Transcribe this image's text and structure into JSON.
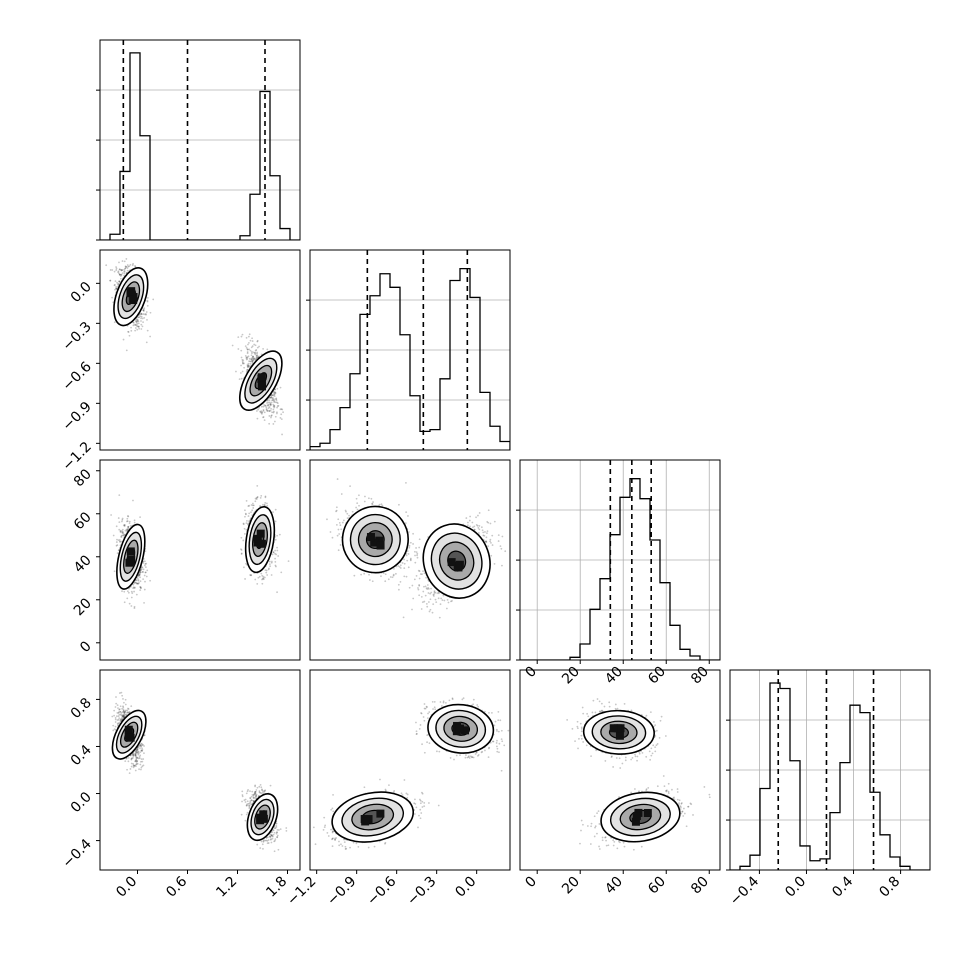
{
  "figure": {
    "type": "corner-plot",
    "variables": 4
  },
  "chart_data": [
    {
      "type": "histogram",
      "row": 0,
      "col": 0,
      "xlim": [
        -0.45,
        1.95
      ],
      "bins": [
        -0.45,
        -0.33,
        -0.21,
        -0.09,
        0.03,
        0.15,
        0.27,
        0.39,
        0.51,
        0.63,
        0.75,
        0.87,
        0.99,
        1.11,
        1.23,
        1.35,
        1.47,
        1.59,
        1.71,
        1.83,
        1.95
      ],
      "counts": [
        0,
        4,
        48,
        131,
        73,
        0,
        0,
        0,
        0,
        0,
        0,
        0,
        0,
        0,
        3,
        32,
        104,
        45,
        8,
        0
      ],
      "ymax": 140,
      "quantiles": [
        -0.17,
        0.6,
        1.53
      ],
      "ticks": [],
      "grid": true
    },
    {
      "type": "histogram",
      "row": 1,
      "col": 1,
      "xlim": [
        -1.25,
        0.25
      ],
      "bins": [
        -1.25,
        -1.175,
        -1.1,
        -1.025,
        -0.95,
        -0.875,
        -0.8,
        -0.725,
        -0.65,
        -0.575,
        -0.5,
        -0.425,
        -0.35,
        -0.275,
        -0.2,
        -0.125,
        -0.05,
        0.025,
        0.1,
        0.175,
        0.25
      ],
      "counts": [
        2,
        4,
        12,
        25,
        45,
        80,
        91,
        104,
        96,
        68,
        32,
        11,
        12,
        42,
        100,
        107,
        90,
        34,
        14,
        5
      ],
      "ymax": 118,
      "quantiles": [
        -0.82,
        -0.4,
        -0.07
      ],
      "ticks": [],
      "grid": true
    },
    {
      "type": "histogram",
      "row": 2,
      "col": 2,
      "xlim": [
        -8,
        85
      ],
      "bins": [
        -8,
        -3.35,
        1.3,
        5.95,
        10.6,
        15.25,
        19.9,
        24.55,
        29.2,
        33.85,
        38.5,
        43.15,
        47.8,
        52.45,
        57.1,
        61.75,
        66.4,
        71.05,
        75.7,
        80.35,
        85
      ],
      "counts": [
        0,
        0,
        0,
        0,
        0,
        2,
        12,
        38,
        61,
        94,
        122,
        136,
        121,
        90,
        58,
        26,
        8,
        3,
        0,
        0
      ],
      "ymax": 150,
      "quantiles": [
        34,
        44,
        53
      ],
      "ticks": [
        0,
        20,
        40,
        60,
        80
      ],
      "tick_labels": [
        "0",
        "20",
        "40",
        "60",
        "80"
      ],
      "grid": true
    },
    {
      "type": "histogram",
      "row": 3,
      "col": 3,
      "xlim": [
        -0.65,
        1.05
      ],
      "bins": [
        -0.65,
        -0.565,
        -0.48,
        -0.395,
        -0.31,
        -0.225,
        -0.14,
        -0.055,
        0.03,
        0.115,
        0.2,
        0.285,
        0.37,
        0.455,
        0.54,
        0.625,
        0.71,
        0.795,
        0.88,
        0.965,
        1.05
      ],
      "counts": [
        0,
        2,
        8,
        44,
        101,
        98,
        59,
        13,
        5,
        6,
        31,
        58,
        89,
        85,
        42,
        19,
        7,
        2,
        0,
        0
      ],
      "ymax": 108,
      "quantiles": [
        -0.24,
        0.17,
        0.57
      ],
      "ticks": [
        -0.4,
        0.0,
        0.4,
        0.8
      ],
      "tick_labels": [
        "−0.4",
        "0.0",
        "0.4",
        "0.8"
      ],
      "grid": true
    },
    {
      "type": "scatter-density",
      "row": 1,
      "col": 0,
      "xlim": [
        -0.45,
        1.95
      ],
      "ylim": [
        -1.25,
        0.25
      ],
      "clusters": [
        {
          "cx": -0.08,
          "cy": -0.1,
          "sx": 0.085,
          "sy": 0.11,
          "corr": -0.3
        },
        {
          "cx": 1.48,
          "cy": -0.73,
          "sx": 0.09,
          "sy": 0.12,
          "corr": -0.55
        }
      ],
      "yticks": [
        -1.2,
        -0.9,
        -0.6,
        -0.3,
        0.0
      ],
      "ytick_labels": [
        "−1.2",
        "−0.9",
        "−0.6",
        "−0.3",
        "0.0"
      ],
      "grid": false
    },
    {
      "type": "scatter-density",
      "row": 2,
      "col": 0,
      "xlim": [
        -0.45,
        1.95
      ],
      "ylim": [
        -8,
        85
      ],
      "clusters": [
        {
          "cx": -0.08,
          "cy": 40,
          "sx": 0.07,
          "sy": 7.5,
          "corr": -0.15
        },
        {
          "cx": 1.47,
          "cy": 48,
          "sx": 0.08,
          "sy": 7.5,
          "corr": -0.1
        }
      ],
      "yticks": [
        0,
        20,
        40,
        60,
        80
      ],
      "ytick_labels": [
        "0",
        "20",
        "40",
        "60",
        "80"
      ],
      "grid": false
    },
    {
      "type": "scatter-density",
      "row": 3,
      "col": 0,
      "xlim": [
        -0.45,
        1.95
      ],
      "ylim": [
        -0.65,
        1.05
      ],
      "clusters": [
        {
          "cx": -0.1,
          "cy": 0.5,
          "sx": 0.075,
          "sy": 0.11,
          "corr": -0.5
        },
        {
          "cx": 1.5,
          "cy": -0.2,
          "sx": 0.08,
          "sy": 0.1,
          "corr": -0.35
        }
      ],
      "xticks": [
        0.0,
        0.6,
        1.2,
        1.8
      ],
      "xtick_labels": [
        "0.0",
        "0.6",
        "1.2",
        "1.8"
      ],
      "yticks": [
        -0.4,
        0.0,
        0.4,
        0.8
      ],
      "ytick_labels": [
        "−0.4",
        "0.0",
        "0.4",
        "0.8"
      ],
      "grid": false
    },
    {
      "type": "scatter-density",
      "row": 2,
      "col": 1,
      "xlim": [
        -1.25,
        0.25
      ],
      "ylim": [
        -8,
        85
      ],
      "clusters": [
        {
          "cx": -0.76,
          "cy": 48,
          "sx": 0.12,
          "sy": 7.5,
          "corr": -0.3
        },
        {
          "cx": -0.15,
          "cy": 38,
          "sx": 0.12,
          "sy": 8.5,
          "corr": 0.55
        }
      ],
      "grid": false
    },
    {
      "type": "scatter-density",
      "row": 3,
      "col": 1,
      "xlim": [
        -1.25,
        0.25
      ],
      "ylim": [
        -0.65,
        1.05
      ],
      "clusters": [
        {
          "cx": -0.78,
          "cy": -0.2,
          "sx": 0.15,
          "sy": 0.1,
          "corr": 0.55
        },
        {
          "cx": -0.12,
          "cy": 0.55,
          "sx": 0.12,
          "sy": 0.1,
          "corr": -0.25
        }
      ],
      "xticks": [
        -1.2,
        -0.9,
        -0.6,
        -0.3,
        0.0
      ],
      "xtick_labels": [
        "−1.2",
        "−0.9",
        "−0.6",
        "−0.3",
        "0.0"
      ],
      "grid": false
    },
    {
      "type": "scatter-density",
      "row": 3,
      "col": 2,
      "xlim": [
        -8,
        85
      ],
      "ylim": [
        -0.65,
        1.05
      ],
      "clusters": [
        {
          "cx": 38,
          "cy": 0.52,
          "sx": 8,
          "sy": 0.09,
          "corr": -0.1
        },
        {
          "cx": 48,
          "cy": -0.2,
          "sx": 9,
          "sy": 0.1,
          "corr": 0.45
        }
      ],
      "xticks": [
        0,
        20,
        40,
        60,
        80
      ],
      "xtick_labels": [
        "0",
        "20",
        "40",
        "60",
        "80"
      ],
      "grid": false
    }
  ]
}
